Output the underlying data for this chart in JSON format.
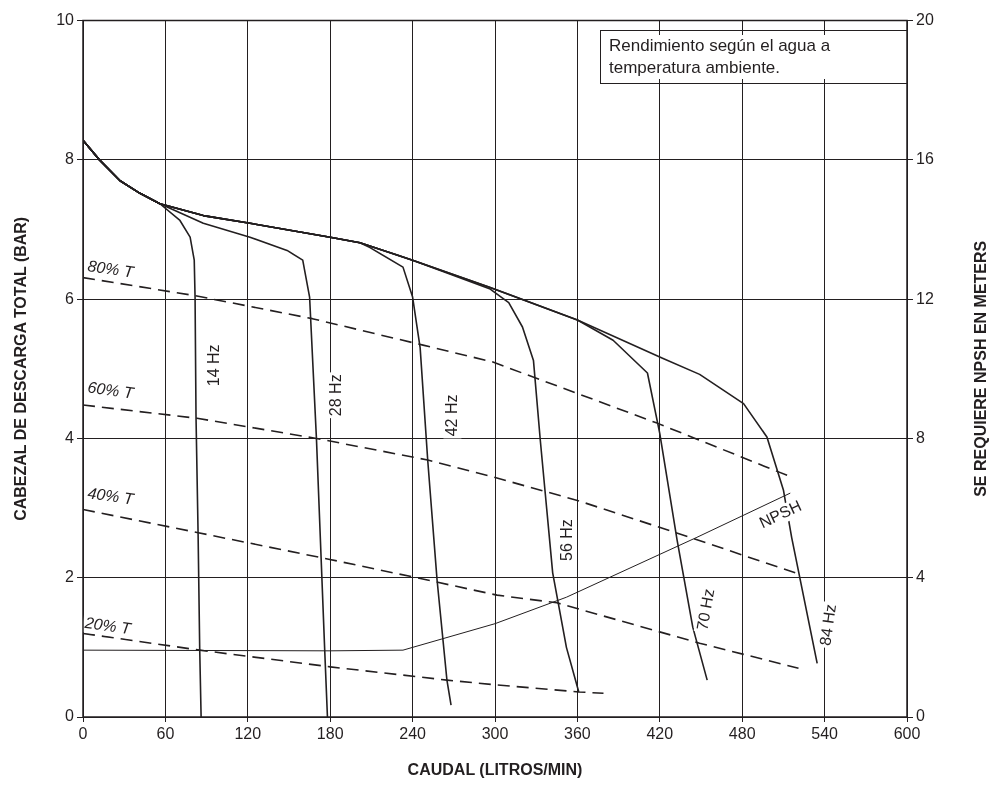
{
  "chart_data": {
    "type": "line",
    "xlabel": "CAUDAL (LITROS/MIN)",
    "ylabel": "CABEZAL DE DESCARGA TOTAL (BAR)",
    "y2label": "SE REQUIERE NPSH EN METERS",
    "annotations": [
      "Rendimiento según el agua a temperatura ambiente."
    ],
    "xlim": [
      0,
      600
    ],
    "xticks": [
      0,
      60,
      120,
      180,
      240,
      300,
      360,
      420,
      480,
      540,
      600
    ],
    "ylim": [
      0,
      10
    ],
    "yticks": [
      0,
      2,
      4,
      6,
      8,
      10
    ],
    "y2lim": [
      0,
      20
    ],
    "y2ticks": [
      0,
      4,
      8,
      12,
      16,
      20
    ],
    "grid": true,
    "marker": "none",
    "series": [
      {
        "name": "14 Hz",
        "color": "#231f20",
        "line_style": "solid",
        "x": [
          0,
          12,
          27,
          41.5,
          56,
          70.6,
          78,
          81,
          81.6,
          82.3,
          83.8,
          85,
          86
        ],
        "values": [
          8.28,
          8.0,
          7.7,
          7.52,
          7.37,
          7.13,
          6.89,
          6.56,
          6.03,
          4.3,
          2.64,
          0.96,
          0
        ]
      },
      {
        "name": "28 Hz",
        "color": "#231f20",
        "line_style": "solid",
        "x": [
          0,
          12,
          27,
          41.5,
          56,
          87.6,
          121.6,
          148.6,
          160,
          165,
          170,
          176,
          178
        ],
        "values": [
          8.28,
          8.0,
          7.7,
          7.52,
          7.37,
          7.09,
          6.89,
          6.7,
          6.56,
          6.03,
          3.99,
          0.96,
          0
        ]
      },
      {
        "name": "42 Hz",
        "color": "#231f20",
        "line_style": "solid",
        "x": [
          0,
          12,
          27,
          41.5,
          56,
          87.6,
          121.6,
          180,
          201.7,
          209,
          233,
          240,
          245.5,
          251,
          257.8,
          265,
          268
        ],
        "values": [
          8.28,
          8.0,
          7.7,
          7.52,
          7.37,
          7.2,
          7.09,
          6.89,
          6.81,
          6.74,
          6.46,
          6.03,
          5.3,
          3.69,
          1.97,
          0.53,
          0.17
        ]
      },
      {
        "name": "56 Hz",
        "color": "#231f20",
        "line_style": "solid",
        "x": [
          0,
          12,
          27,
          41.5,
          56,
          87.6,
          121.6,
          180,
          201.7,
          240,
          296,
          310,
          320,
          328,
          333,
          342,
          352,
          361
        ],
        "values": [
          8.28,
          8.0,
          7.7,
          7.52,
          7.37,
          7.2,
          7.09,
          6.89,
          6.81,
          6.56,
          6.15,
          5.95,
          5.6,
          5.12,
          3.97,
          2.07,
          1.0,
          0.36
        ]
      },
      {
        "name": "70 Hz",
        "color": "#231f20",
        "line_style": "solid",
        "x": [
          0,
          12,
          27,
          41.5,
          56,
          87.6,
          121.6,
          180,
          201.7,
          240,
          296,
          360,
          386,
          411,
          420,
          432.6,
          444,
          454.5
        ],
        "values": [
          8.28,
          8.0,
          7.7,
          7.52,
          7.37,
          7.2,
          7.09,
          6.89,
          6.81,
          6.56,
          6.17,
          5.7,
          5.41,
          4.94,
          4.07,
          2.54,
          1.29,
          0.53
        ]
      },
      {
        "name": "84 Hz",
        "color": "#231f20",
        "line_style": "solid",
        "x": [
          0,
          12,
          27,
          41.5,
          56,
          87.6,
          121.6,
          180,
          201.7,
          240,
          296,
          360,
          422,
          449,
          481,
          498,
          510,
          516,
          534.6
        ],
        "values": [
          8.28,
          8.0,
          7.7,
          7.52,
          7.37,
          7.2,
          7.09,
          6.89,
          6.81,
          6.56,
          6.17,
          5.7,
          5.15,
          4.92,
          4.5,
          4.02,
          3.26,
          2.58,
          0.77
        ]
      },
      {
        "name": "80% T",
        "color": "#231f20",
        "line_style": "dashed",
        "x": [
          0,
          81.6,
          167,
          247.6,
          298,
          418,
          512.7
        ],
        "values": [
          6.31,
          6.05,
          5.72,
          5.34,
          5.1,
          4.22,
          3.47
        ]
      },
      {
        "name": "60% T",
        "color": "#231f20",
        "line_style": "dashed",
        "x": [
          0,
          83,
          170,
          251,
          298,
          360,
          442,
          518.6
        ],
        "values": [
          4.48,
          4.29,
          4.0,
          3.69,
          3.45,
          3.11,
          2.58,
          2.07
        ]
      },
      {
        "name": "40% T",
        "color": "#231f20",
        "line_style": "dashed",
        "x": [
          0,
          83,
          178,
          240.5,
          301.5,
          345,
          449,
          521
        ],
        "values": [
          2.98,
          2.65,
          2.27,
          2.01,
          1.75,
          1.64,
          1.06,
          0.7
        ]
      },
      {
        "name": "20% T",
        "color": "#231f20",
        "line_style": "dashed",
        "x": [
          0,
          85,
          180,
          265,
          301.5,
          361,
          379
        ],
        "values": [
          1.2,
          0.96,
          0.72,
          0.53,
          0.46,
          0.36,
          0.34
        ]
      },
      {
        "name": "NPSH",
        "color": "#231f20",
        "line_style": "solid",
        "axis": "y2",
        "x": [
          0,
          180,
          233,
          300,
          352,
          447,
          515
        ],
        "values": [
          1.92,
          1.9,
          1.92,
          2.68,
          3.44,
          5.16,
          6.43
        ]
      }
    ]
  }
}
